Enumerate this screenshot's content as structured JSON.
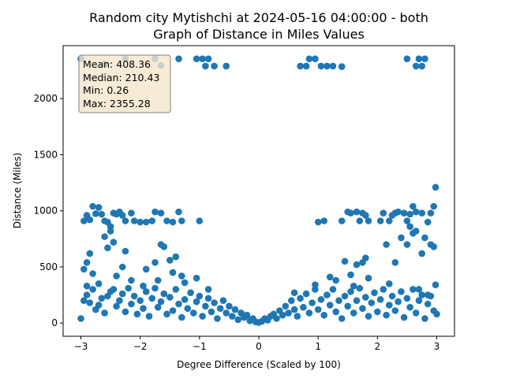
{
  "chart_data": {
    "type": "scatter",
    "title_line1": "Random city Mytishchi at 2024-05-16 04:00:00  - both",
    "title_line2": "Graph of Distance in Miles Values",
    "xlabel": "Degree Difference (Scaled by 100)",
    "ylabel": "Distance (Miles)",
    "xlim": [
      -3.3,
      3.3
    ],
    "ylim": [
      -118,
      2472
    ],
    "x_ticks": [
      -3,
      -2,
      -1,
      0,
      1,
      2,
      3
    ],
    "y_ticks": [
      0,
      500,
      1000,
      1500,
      2000
    ],
    "grid": false,
    "marker_color": "#1f77b4",
    "stats": {
      "mean": "Mean: 408.36",
      "median": "Median: 210.43",
      "min": "Min: 0.26",
      "max": "Max: 2355.28"
    },
    "stats_box_fill": "#f5e6cc",
    "points": [
      [
        -3.0,
        2355
      ],
      [
        -2.6,
        2310
      ],
      [
        -2.25,
        2355
      ],
      [
        -1.75,
        2355
      ],
      [
        -1.65,
        2295
      ],
      [
        -1.35,
        2355
      ],
      [
        -1.05,
        2355
      ],
      [
        -0.95,
        2355
      ],
      [
        -0.9,
        2290
      ],
      [
        -0.85,
        2355
      ],
      [
        -0.75,
        2290
      ],
      [
        -0.55,
        2290
      ],
      [
        0.7,
        2290
      ],
      [
        0.8,
        2290
      ],
      [
        0.85,
        2355
      ],
      [
        0.95,
        2355
      ],
      [
        1.05,
        2290
      ],
      [
        1.15,
        2290
      ],
      [
        1.25,
        2290
      ],
      [
        1.4,
        2285
      ],
      [
        2.5,
        2355
      ],
      [
        2.65,
        2290
      ],
      [
        2.7,
        2355
      ],
      [
        2.75,
        2290
      ],
      [
        2.8,
        2355
      ],
      [
        -2.95,
        910
      ],
      [
        -2.9,
        960
      ],
      [
        -2.85,
        920
      ],
      [
        -2.8,
        1040
      ],
      [
        -2.75,
        975
      ],
      [
        -2.7,
        1030
      ],
      [
        -2.65,
        970
      ],
      [
        -2.6,
        910
      ],
      [
        -2.55,
        900
      ],
      [
        -2.5,
        860
      ],
      [
        -2.45,
        980
      ],
      [
        -2.4,
        970
      ],
      [
        -2.35,
        990
      ],
      [
        -2.3,
        960
      ],
      [
        -2.25,
        910
      ],
      [
        -2.15,
        980
      ],
      [
        -2.1,
        910
      ],
      [
        -2.0,
        900
      ],
      [
        -1.9,
        900
      ],
      [
        -1.8,
        910
      ],
      [
        -1.75,
        990
      ],
      [
        -1.65,
        980
      ],
      [
        -1.55,
        910
      ],
      [
        -1.45,
        900
      ],
      [
        -1.35,
        990
      ],
      [
        -1.3,
        910
      ],
      [
        -1.0,
        910
      ],
      [
        1.0,
        900
      ],
      [
        1.1,
        910
      ],
      [
        1.4,
        910
      ],
      [
        1.5,
        990
      ],
      [
        1.55,
        980
      ],
      [
        1.65,
        990
      ],
      [
        1.7,
        910
      ],
      [
        1.75,
        980
      ],
      [
        1.8,
        960
      ],
      [
        1.85,
        910
      ],
      [
        2.05,
        910
      ],
      [
        2.1,
        980
      ],
      [
        2.2,
        910
      ],
      [
        2.25,
        960
      ],
      [
        2.3,
        980
      ],
      [
        2.35,
        990
      ],
      [
        2.45,
        980
      ],
      [
        2.5,
        910
      ],
      [
        2.55,
        970
      ],
      [
        2.6,
        1040
      ],
      [
        2.65,
        990
      ],
      [
        2.75,
        980
      ],
      [
        2.85,
        900
      ],
      [
        2.9,
        980
      ],
      [
        2.95,
        1040
      ],
      [
        2.98,
        1210
      ],
      [
        -2.95,
        480
      ],
      [
        -2.9,
        540
      ],
      [
        -2.85,
        620
      ],
      [
        -2.8,
        440
      ],
      [
        -2.6,
        770
      ],
      [
        -2.55,
        670
      ],
      [
        -2.5,
        820
      ],
      [
        -2.45,
        720
      ],
      [
        -2.3,
        500
      ],
      [
        -2.25,
        640
      ],
      [
        -1.9,
        480
      ],
      [
        -1.75,
        540
      ],
      [
        -1.65,
        700
      ],
      [
        -1.6,
        680
      ],
      [
        -1.5,
        560
      ],
      [
        -1.45,
        450
      ],
      [
        -1.4,
        590
      ],
      [
        -1.3,
        420
      ],
      [
        1.2,
        410
      ],
      [
        1.45,
        550
      ],
      [
        1.55,
        430
      ],
      [
        1.65,
        520
      ],
      [
        1.75,
        540
      ],
      [
        1.8,
        580
      ],
      [
        1.85,
        400
      ],
      [
        2.15,
        700
      ],
      [
        2.3,
        540
      ],
      [
        2.4,
        760
      ],
      [
        2.5,
        700
      ],
      [
        2.55,
        860
      ],
      [
        2.6,
        800
      ],
      [
        2.65,
        820
      ],
      [
        2.75,
        620
      ],
      [
        2.8,
        760
      ],
      [
        2.9,
        700
      ],
      [
        2.95,
        680
      ],
      [
        2.98,
        340
      ],
      [
        -3.0,
        40
      ],
      [
        -2.95,
        200
      ],
      [
        -2.9,
        250
      ],
      [
        -2.85,
        180
      ],
      [
        -2.8,
        300
      ],
      [
        -2.75,
        120
      ],
      [
        -2.7,
        160
      ],
      [
        -2.65,
        220
      ],
      [
        -2.6,
        90
      ],
      [
        -2.55,
        240
      ],
      [
        -2.5,
        280
      ],
      [
        -2.45,
        300
      ],
      [
        -2.4,
        150
      ],
      [
        -2.35,
        200
      ],
      [
        -2.3,
        260
      ],
      [
        -2.25,
        100
      ],
      [
        -2.2,
        310
      ],
      [
        -2.15,
        170
      ],
      [
        -2.1,
        240
      ],
      [
        -2.05,
        80
      ],
      [
        -2.0,
        200
      ],
      [
        -1.95,
        130
      ],
      [
        -1.9,
        280
      ],
      [
        -1.85,
        60
      ],
      [
        -1.8,
        220
      ],
      [
        -1.75,
        310
      ],
      [
        -1.7,
        140
      ],
      [
        -1.65,
        190
      ],
      [
        -1.6,
        260
      ],
      [
        -1.55,
        80
      ],
      [
        -1.5,
        230
      ],
      [
        -1.45,
        110
      ],
      [
        -1.4,
        300
      ],
      [
        -1.35,
        170
      ],
      [
        -1.3,
        50
      ],
      [
        -1.25,
        210
      ],
      [
        -1.2,
        130
      ],
      [
        -1.15,
        270
      ],
      [
        -1.1,
        90
      ],
      [
        -1.05,
        190
      ],
      [
        -1.0,
        240
      ],
      [
        -0.95,
        60
      ],
      [
        -0.9,
        150
      ],
      [
        -0.85,
        220
      ],
      [
        -0.8,
        100
      ],
      [
        -0.75,
        180
      ],
      [
        -0.7,
        40
      ],
      [
        -0.65,
        130
      ],
      [
        -0.6,
        200
      ],
      [
        -0.55,
        90
      ],
      [
        -0.5,
        150
      ],
      [
        -0.45,
        60
      ],
      [
        -0.4,
        120
      ],
      [
        -0.35,
        30
      ],
      [
        -0.3,
        90
      ],
      [
        -0.25,
        50
      ],
      [
        -0.2,
        70
      ],
      [
        -0.15,
        20
      ],
      [
        -0.1,
        40
      ],
      [
        -0.05,
        10
      ],
      [
        0.0,
        5
      ],
      [
        0.05,
        15
      ],
      [
        0.1,
        40
      ],
      [
        0.15,
        25
      ],
      [
        0.2,
        60
      ],
      [
        0.25,
        80
      ],
      [
        0.3,
        40
      ],
      [
        0.35,
        110
      ],
      [
        0.4,
        70
      ],
      [
        0.45,
        150
      ],
      [
        0.5,
        90
      ],
      [
        0.55,
        200
      ],
      [
        0.6,
        120
      ],
      [
        0.65,
        60
      ],
      [
        0.7,
        220
      ],
      [
        0.75,
        140
      ],
      [
        0.8,
        260
      ],
      [
        0.85,
        90
      ],
      [
        0.9,
        180
      ],
      [
        0.95,
        300
      ],
      [
        1.0,
        120
      ],
      [
        1.05,
        210
      ],
      [
        1.1,
        70
      ],
      [
        1.15,
        250
      ],
      [
        1.2,
        160
      ],
      [
        1.25,
        300
      ],
      [
        1.3,
        100
      ],
      [
        1.35,
        200
      ],
      [
        1.4,
        40
      ],
      [
        1.45,
        240
      ],
      [
        1.5,
        150
      ],
      [
        1.55,
        280
      ],
      [
        1.6,
        90
      ],
      [
        1.65,
        200
      ],
      [
        1.7,
        310
      ],
      [
        1.75,
        130
      ],
      [
        1.8,
        230
      ],
      [
        1.85,
        60
      ],
      [
        1.9,
        180
      ],
      [
        1.95,
        270
      ],
      [
        2.0,
        100
      ],
      [
        2.05,
        210
      ],
      [
        2.1,
        300
      ],
      [
        2.15,
        70
      ],
      [
        2.2,
        160
      ],
      [
        2.25,
        240
      ],
      [
        2.3,
        110
      ],
      [
        2.35,
        190
      ],
      [
        2.4,
        280
      ],
      [
        2.45,
        50
      ],
      [
        2.5,
        220
      ],
      [
        2.55,
        140
      ],
      [
        2.6,
        300
      ],
      [
        2.65,
        90
      ],
      [
        2.7,
        200
      ],
      [
        2.75,
        250
      ],
      [
        2.8,
        40
      ],
      [
        2.85,
        170
      ],
      [
        2.9,
        240
      ],
      [
        2.95,
        110
      ],
      [
        3.0,
        80
      ],
      [
        -2.9,
        330
      ],
      [
        -2.7,
        350
      ],
      [
        -2.4,
        420
      ],
      [
        -2.15,
        380
      ],
      [
        -1.95,
        330
      ],
      [
        -1.7,
        380
      ],
      [
        -1.25,
        360
      ],
      [
        -1.05,
        400
      ],
      [
        -0.85,
        300
      ],
      [
        0.6,
        270
      ],
      [
        0.95,
        340
      ],
      [
        1.3,
        380
      ],
      [
        1.6,
        330
      ],
      [
        2.2,
        350
      ],
      [
        2.7,
        300
      ],
      [
        2.85,
        250
      ]
    ]
  }
}
